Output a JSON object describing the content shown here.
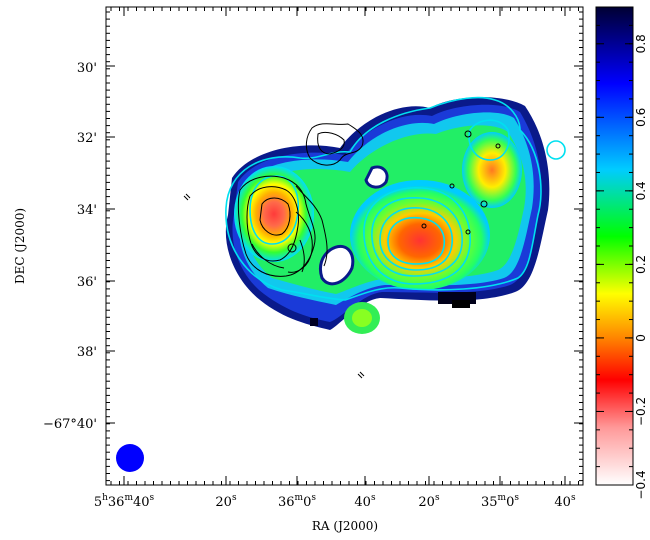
{
  "chart_data": {
    "type": "heatmap",
    "title": "",
    "xlabel": "RA (J2000)",
    "ylabel": "DEC (J2000)",
    "x_ticks": [
      {
        "label": "5h36m40s",
        "h": "5",
        "m": "36",
        "s": "40"
      },
      {
        "label": "20s",
        "s": "20"
      },
      {
        "label": "36m0s",
        "m": "36",
        "s": "0"
      },
      {
        "label": "40s",
        "s": "40"
      },
      {
        "label": "20s",
        "s": "20"
      },
      {
        "label": "35m0s",
        "m": "35",
        "s": "0"
      },
      {
        "label": "40s",
        "s": "40"
      }
    ],
    "y_ticks": [
      {
        "label": "30'",
        "v": "30"
      },
      {
        "label": "32'",
        "v": "32"
      },
      {
        "label": "34'",
        "v": "34"
      },
      {
        "label": "36'",
        "v": "36"
      },
      {
        "label": "38'",
        "v": "38"
      },
      {
        "label": "−67°40'",
        "v": "−67°40"
      }
    ],
    "colorbar": {
      "range": [
        -0.4,
        0.9
      ],
      "tick_labels": [
        "−0.4",
        "−0.2",
        "0",
        "0.2",
        "0.4",
        "0.6",
        "0.8"
      ],
      "colors": [
        "#ffffff",
        "#ff9999",
        "#ff0000",
        "#ff8800",
        "#ffff00",
        "#00ff00",
        "#00ccff",
        "#0000ff",
        "#000033"
      ]
    },
    "beam_color": "#0000ff",
    "contour_colors": {
      "black": "#000000",
      "cyan": "#00e0f0"
    }
  }
}
